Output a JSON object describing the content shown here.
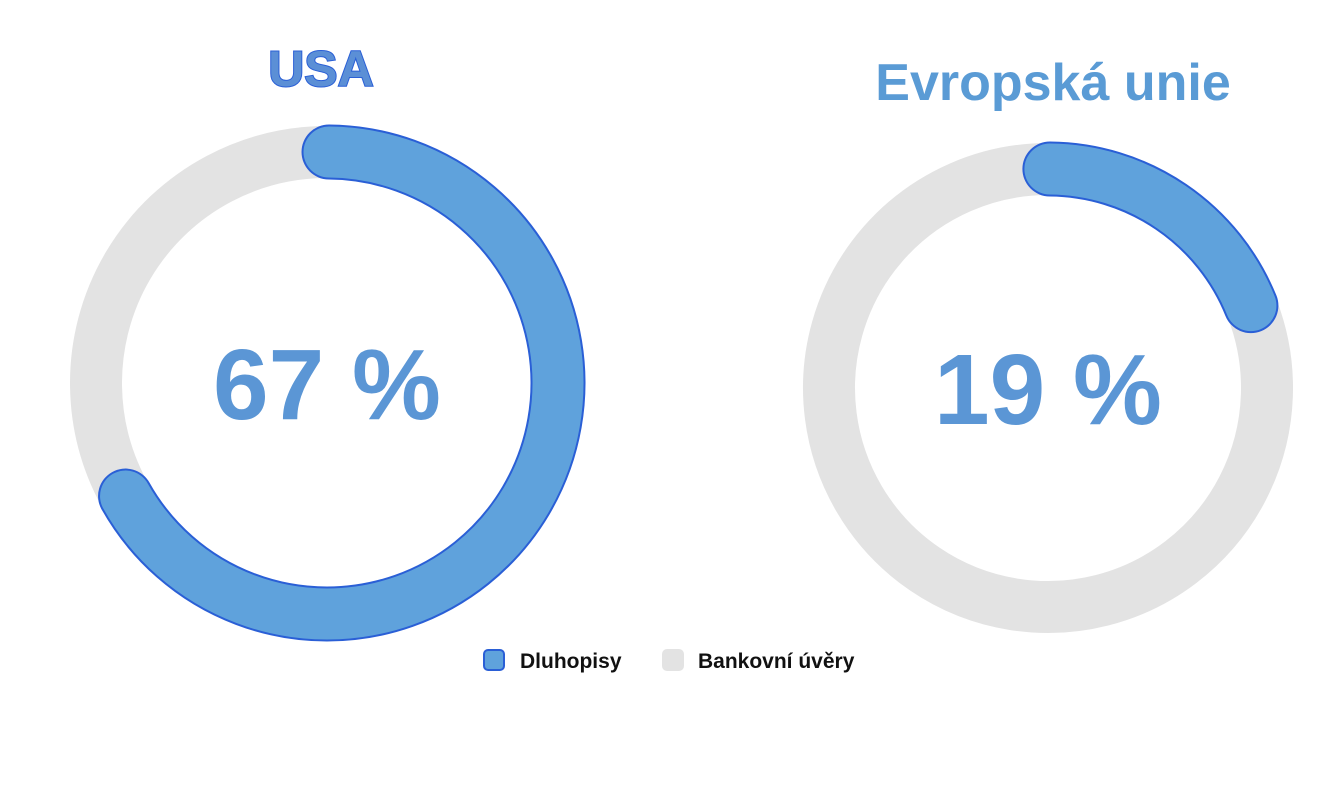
{
  "colors": {
    "bonds": "#5fa2dc",
    "bonds_stroke": "#2a5fd6",
    "loans": "#e3e3e3",
    "title_usa": "#5b8fd6",
    "title_usa_stroke": "#2a5fd6",
    "title_eu": "#5a9bd5",
    "center_text": "#5b96d5",
    "legend_text": "#111111"
  },
  "legend": {
    "items": [
      {
        "label": "Dluhopisy",
        "color": "#5fa2dc",
        "border": "#2a5fd6"
      },
      {
        "label": "Bankovní úvěry",
        "color": "#e3e3e3",
        "border": "#e3e3e3"
      }
    ]
  },
  "chart_data": [
    {
      "type": "pie",
      "variant": "donut",
      "title": "USA",
      "center_label": "67 %",
      "categories": [
        "Dluhopisy",
        "Bankovní úvěry"
      ],
      "values": [
        67,
        33
      ],
      "unit": "%"
    },
    {
      "type": "pie",
      "variant": "donut",
      "title": "Evropská unie",
      "center_label": "19 %",
      "categories": [
        "Dluhopisy",
        "Bankovní úvěry"
      ],
      "values": [
        19,
        81
      ],
      "unit": "%"
    }
  ]
}
